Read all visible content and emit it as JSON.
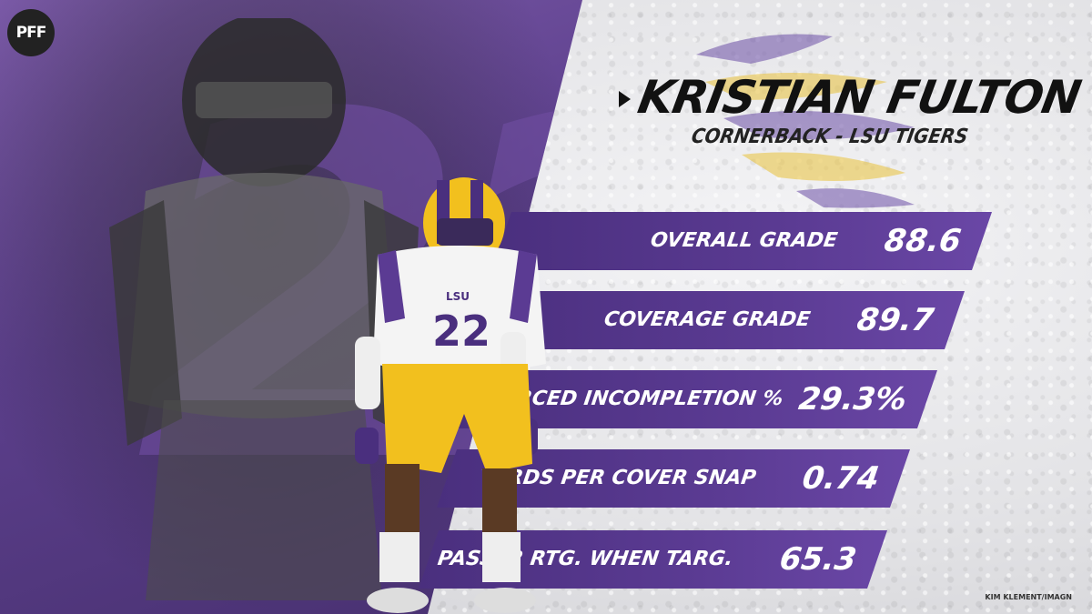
{
  "brand": {
    "logo_text": "PFF"
  },
  "player": {
    "name": "KRISTIAN FULTON",
    "subtitle": "CORNERBACK - LSU TIGERS",
    "jersey_number": "22",
    "chest_text": "LSU"
  },
  "stats": [
    {
      "label": "OVERALL GRADE",
      "value": "88.6"
    },
    {
      "label": "COVERAGE GRADE",
      "value": "89.7"
    },
    {
      "label": "FORCED INCOMPLETION %",
      "value": "29.3%"
    },
    {
      "label": "YARDS PER COVER SNAP",
      "value": "0.74"
    },
    {
      "label": "PASSER RTG. WHEN TARG.",
      "value": "65.3"
    }
  ],
  "photo_credit": "KIM KLEMENT/IMAGN",
  "colors": {
    "lsu_purple": "#5b3b93",
    "lsu_gold": "#f2c01e",
    "text_dark": "#111111",
    "text_light": "#ffffff"
  }
}
